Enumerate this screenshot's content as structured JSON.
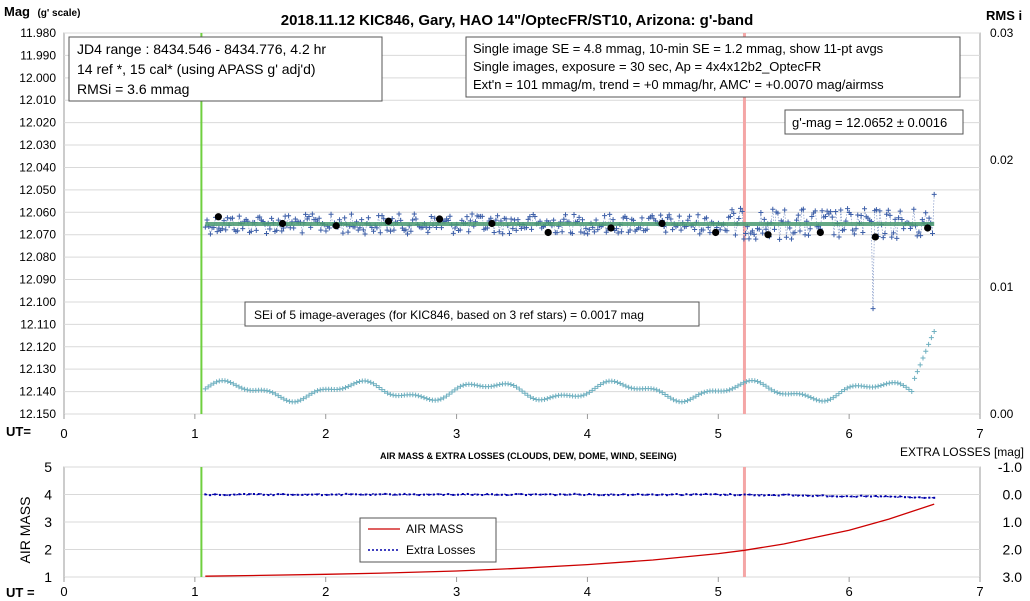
{
  "top_chart": {
    "title": "2018.11.12 KIC846, Gary, HAO 14\"/OptecFR/ST10, Arizona: g'-band",
    "ylabel_main": "Mag",
    "ylabel_sub": "(g' scale)",
    "y2label": "RMS i",
    "xaxis_prefix": "UT=",
    "box1_lines": [
      "JD4 range : 8434.546 - 8434.776,  4.2  hr",
      "14 ref *, 15 cal* (using APASS g' adj'd)",
      "RMSi = 3.6 mmag"
    ],
    "box2_lines": [
      "Single image SE = 4.8 mmag, 10-min SE = 1.2 mmag, show  11-pt avgs",
      "Single images, exposure = 30 sec, Ap = 4x4x12b2_OptecFR",
      "Ext'n = 101 mmag/m, trend =  +0 mmag/hr, AMC' = +0.0070 mag/airmss"
    ],
    "gmag_box": "g'-mag = 12.0652 ± 0.0016",
    "sei_box": "SEi of 5 image-averages (for KIC846, based on 3 ref stars) = 0.0017 mag",
    "yticks": [
      "11.980",
      "11.990",
      "12.000",
      "12.010",
      "12.020",
      "12.030",
      "12.040",
      "12.050",
      "12.060",
      "12.070",
      "12.080",
      "12.090",
      "12.100",
      "12.110",
      "12.120",
      "12.130",
      "12.140",
      "12.150"
    ],
    "y2ticks": [
      "0.03",
      "0.02",
      "0.01",
      "0.00"
    ],
    "xticks": [
      "0",
      "1",
      "2",
      "3",
      "4",
      "5",
      "6",
      "7"
    ]
  },
  "bottom_chart": {
    "title": "AIR MASS & EXTRA LOSSES (CLOUDS, DEW, DOME, WIND, SEEING)",
    "ylabel": "AIR MASS",
    "y2label": "EXTRA LOSSES [mag]",
    "xaxis_prefix": "UT =",
    "yticks": [
      "5",
      "4",
      "3",
      "2",
      "1"
    ],
    "y2ticks": [
      "-1.0",
      "0.0",
      "1.0",
      "2.0",
      "3.0"
    ],
    "xticks": [
      "0",
      "1",
      "2",
      "3",
      "4",
      "5",
      "6",
      "7"
    ],
    "legend": [
      "AIR MASS",
      "Extra Losses"
    ]
  },
  "colors": {
    "green_marker": "#6fcf3f",
    "red_marker": "#f4a6a6",
    "single_points": "#3d5fa8",
    "fit_line": "#4a9a70",
    "rms_points": "#6fb0c0",
    "air_mass": "#cc0000",
    "extra_losses": "#0000aa"
  },
  "chart_data": [
    {
      "type": "scatter",
      "title": "2018.11.12 KIC846, Gary, HAO 14\"/OptecFR/ST10, Arizona: g'-band",
      "xlabel": "UT=",
      "ylabel": "Mag (g' scale)",
      "y2label": "RMS i",
      "xlim": [
        0,
        7
      ],
      "ylim": [
        12.15,
        11.98
      ],
      "y2lim": [
        0.0,
        0.03
      ],
      "grid": true,
      "markers_ut": [
        1.05,
        5.2
      ],
      "fit_mag": 12.0652,
      "series": [
        {
          "name": "11-pt avgs",
          "x": [
            1.18,
            1.67,
            2.08,
            2.48,
            2.87,
            3.27,
            3.7,
            4.18,
            4.57,
            4.98,
            5.38,
            5.78,
            6.2,
            6.6
          ],
          "values": [
            12.062,
            12.065,
            12.066,
            12.064,
            12.063,
            12.065,
            12.069,
            12.067,
            12.065,
            12.069,
            12.07,
            12.069,
            12.071,
            12.067
          ]
        }
      ],
      "single_image_range": {
        "x": [
          1.08,
          6.65
        ],
        "mag_min": 12.052,
        "mag_max": 12.103
      },
      "rms_range": {
        "x": [
          1.08,
          6.65
        ],
        "rms_min": 0.0005,
        "rms_max": 0.0065
      }
    },
    {
      "type": "line",
      "title": "AIR MASS & EXTRA LOSSES (CLOUDS, DEW, DOME, WIND, SEEING)",
      "xlabel": "UT =",
      "ylabel": "AIR MASS",
      "y2label": "EXTRA LOSSES [mag]",
      "xlim": [
        0,
        7
      ],
      "ylim": [
        1,
        5
      ],
      "y2lim": [
        -1.0,
        3.0
      ],
      "grid": true,
      "series": [
        {
          "name": "AIR MASS",
          "x": [
            1.08,
            1.5,
            2.0,
            2.5,
            3.0,
            3.5,
            4.0,
            4.5,
            5.0,
            5.2,
            5.5,
            6.0,
            6.3,
            6.65
          ],
          "values": [
            1.03,
            1.06,
            1.1,
            1.15,
            1.22,
            1.32,
            1.45,
            1.62,
            1.85,
            1.97,
            2.2,
            2.7,
            3.1,
            3.65
          ]
        },
        {
          "name": "Extra Losses",
          "x": [
            1.08,
            2.0,
            3.0,
            4.0,
            5.0,
            5.5,
            6.0,
            6.3,
            6.65
          ],
          "values": [
            0.0,
            0.0,
            0.0,
            0.0,
            0.0,
            0.02,
            0.06,
            0.08,
            0.13
          ]
        }
      ]
    }
  ]
}
